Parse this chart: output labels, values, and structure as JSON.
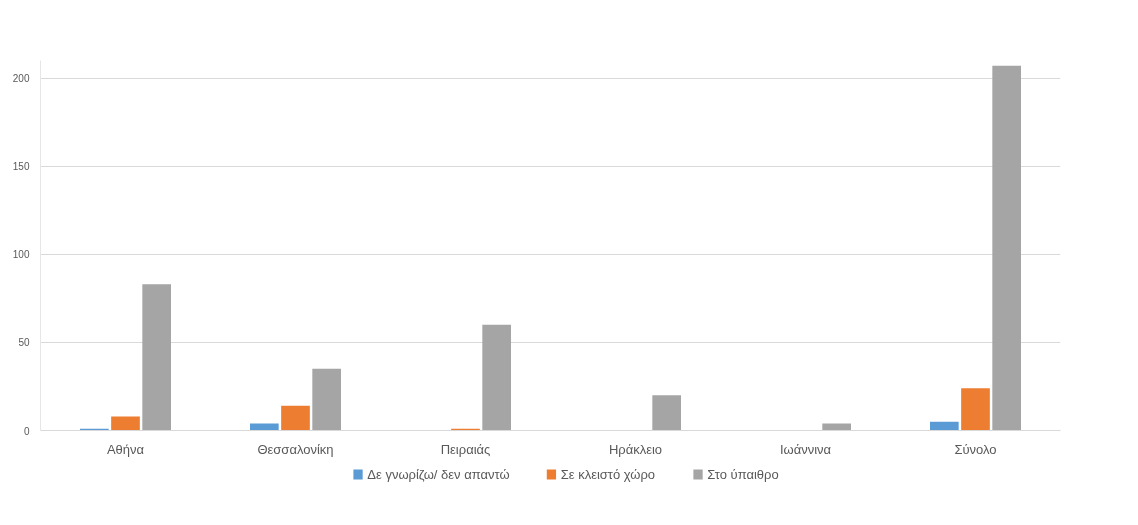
{
  "chart_data": {
    "type": "bar",
    "categories": [
      "Αθήνα",
      "Θεσσαλονίκη",
      "Πειραιάς",
      "Ηράκλειο",
      "Ιωάννινα",
      "Σύνολο"
    ],
    "series": [
      {
        "name": "Δε γνωρίζω/ δεν απαντώ",
        "color": "#5b9bd5",
        "values": [
          1,
          4,
          0,
          0,
          0,
          5
        ]
      },
      {
        "name": "Σε κλειστό χώρο",
        "color": "#ed7d31",
        "values": [
          8,
          14,
          1,
          0,
          0,
          24
        ]
      },
      {
        "name": "Στο ύπαιθρο",
        "color": "#a5a5a5",
        "values": [
          83,
          35,
          60,
          20,
          4,
          207
        ]
      }
    ],
    "ylim": [
      0,
      210
    ],
    "yticks": [
      0,
      50,
      100,
      150,
      200
    ],
    "grid": "y",
    "legend": "bottom"
  }
}
